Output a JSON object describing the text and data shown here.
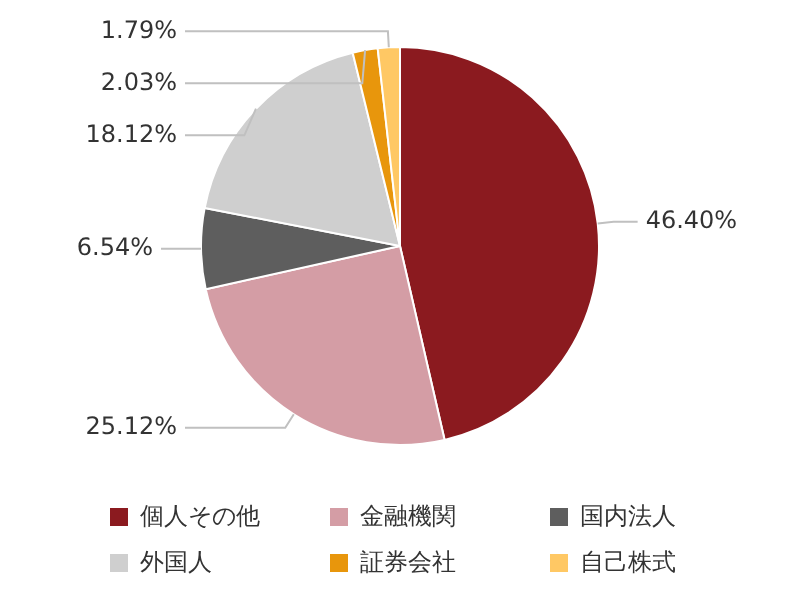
{
  "chart_data": {
    "type": "pie",
    "categories": [
      "個人その他",
      "金融機関",
      "国内法人",
      "外国人",
      "証券会社",
      "自己株式"
    ],
    "values": [
      46.4,
      25.12,
      6.54,
      18.12,
      2.03,
      1.79
    ],
    "colors": [
      "#8b1a1f",
      "#d49da5",
      "#5e5e5e",
      "#cfcfcf",
      "#e8960c",
      "#ffc864"
    ],
    "value_labels": [
      "46.40%",
      "25.12%",
      "6.54%",
      "18.12%",
      "2.03%",
      "1.79%"
    ],
    "legend": "bottom"
  }
}
